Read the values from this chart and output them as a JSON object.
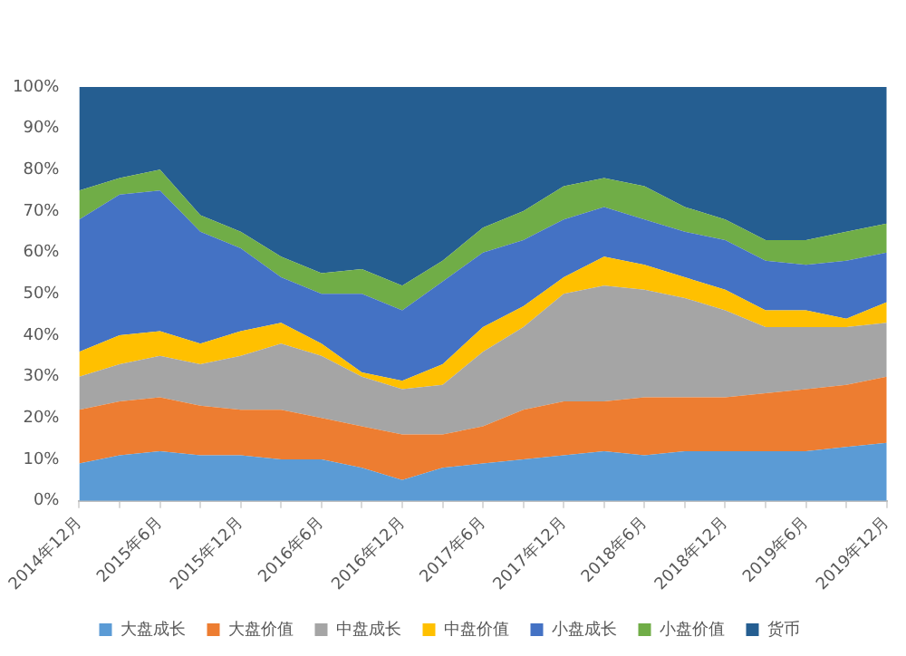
{
  "chart_data": {
    "type": "area",
    "stacked": true,
    "legend": "bottom",
    "grid": false,
    "categories": [
      "2014年12月",
      null,
      "2015年6月",
      null,
      "2015年12月",
      null,
      "2016年6月",
      null,
      "2016年12月",
      null,
      "2017年6月",
      null,
      "2017年12月",
      null,
      "2018年6月",
      null,
      "2018年12月",
      null,
      "2019年6月",
      null,
      "2019年12月"
    ],
    "ylim": [
      0,
      100
    ],
    "yticks": [
      {
        "value": 0,
        "label": "0%"
      },
      {
        "value": 10,
        "label": "10%"
      },
      {
        "value": 20,
        "label": "20%"
      },
      {
        "value": 30,
        "label": "30%"
      },
      {
        "value": 40,
        "label": "40%"
      },
      {
        "value": 50,
        "label": "50%"
      },
      {
        "value": 60,
        "label": "60%"
      },
      {
        "value": 70,
        "label": "70%"
      },
      {
        "value": 80,
        "label": "80%"
      },
      {
        "value": 90,
        "label": "90%"
      },
      {
        "value": 100,
        "label": "100%"
      }
    ],
    "series": [
      {
        "name": "大盘成长",
        "color": "#5b9bd5",
        "values": [
          9,
          11,
          12,
          11,
          11,
          10,
          10,
          8,
          5,
          8,
          9,
          10,
          11,
          12,
          11,
          12,
          12,
          12,
          12,
          13,
          14
        ]
      },
      {
        "name": "大盘价值",
        "color": "#ed7d31",
        "values": [
          13,
          13,
          13,
          12,
          11,
          12,
          10,
          10,
          11,
          8,
          9,
          12,
          13,
          12,
          14,
          13,
          13,
          14,
          15,
          15,
          16
        ]
      },
      {
        "name": "中盘成长",
        "color": "#a5a5a5",
        "values": [
          8,
          9,
          10,
          10,
          13,
          16,
          15,
          12,
          11,
          12,
          18,
          20,
          26,
          28,
          26,
          24,
          21,
          16,
          15,
          14,
          13
        ]
      },
      {
        "name": "中盘价值",
        "color": "#ffc000",
        "values": [
          6,
          7,
          6,
          5,
          6,
          5,
          3,
          1,
          2,
          5,
          6,
          5,
          4,
          7,
          6,
          5,
          5,
          4,
          4,
          2,
          5
        ]
      },
      {
        "name": "小盘成长",
        "color": "#4472c4",
        "values": [
          32,
          34,
          34,
          27,
          20,
          11,
          12,
          19,
          17,
          20,
          18,
          16,
          14,
          12,
          11,
          11,
          12,
          12,
          11,
          14,
          12
        ]
      },
      {
        "name": "小盘价值",
        "color": "#70ad47",
        "values": [
          7,
          4,
          5,
          4,
          4,
          5,
          5,
          6,
          6,
          5,
          6,
          7,
          8,
          7,
          8,
          6,
          5,
          5,
          6,
          7,
          7
        ]
      },
      {
        "name": "货币",
        "color": "#255e91",
        "values": [
          25,
          22,
          20,
          31,
          35,
          41,
          45,
          44,
          48,
          42,
          34,
          30,
          24,
          22,
          24,
          29,
          32,
          37,
          37,
          35,
          33
        ]
      }
    ]
  }
}
